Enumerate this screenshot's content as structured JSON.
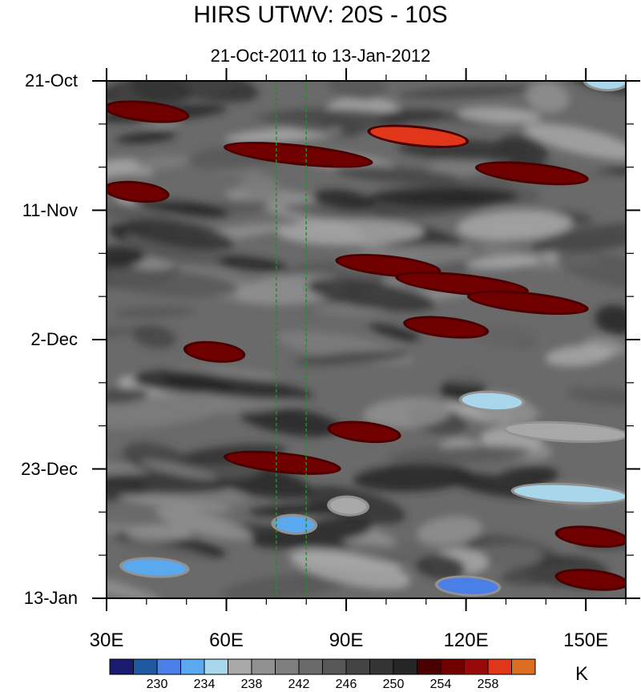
{
  "chart_data": {
    "type": "heatmap",
    "title": "HIRS UTWV: 20S - 10S",
    "subtitle": "21-Oct-2011 to 13-Jan-2012",
    "x_ticks": [
      {
        "value": 30,
        "label": "30E"
      },
      {
        "value": 60,
        "label": "60E"
      },
      {
        "value": 90,
        "label": "90E"
      },
      {
        "value": 120,
        "label": "120E"
      },
      {
        "value": 150,
        "label": "150E"
      }
    ],
    "y_ticks": [
      {
        "value": "2011-10-21",
        "label": "21-Oct"
      },
      {
        "value": "2011-11-11",
        "label": "11-Nov"
      },
      {
        "value": "2011-12-02",
        "label": "2-Dec"
      },
      {
        "value": "2011-12-23",
        "label": "23-Dec"
      },
      {
        "value": "2012-01-13",
        "label": "13-Jan"
      }
    ],
    "xlim": [
      30,
      160
    ],
    "ylim": [
      "2011-10-21",
      "2012-01-13"
    ],
    "reference_lines_x": [
      72.5,
      80
    ],
    "reference_line_color": "#2a8a2a",
    "colorbar": {
      "units": "K",
      "levels": [
        228,
        230,
        232,
        234,
        236,
        238,
        240,
        242,
        244,
        246,
        248,
        250,
        252,
        254,
        256,
        258
      ],
      "labeled_levels": [
        {
          "value": 230,
          "label": "230"
        },
        {
          "value": 234,
          "label": "234"
        },
        {
          "value": 238,
          "label": "238"
        },
        {
          "value": 242,
          "label": "242"
        },
        {
          "value": 246,
          "label": "246"
        },
        {
          "value": 250,
          "label": "250"
        },
        {
          "value": 254,
          "label": "254"
        },
        {
          "value": 258,
          "label": "258"
        }
      ],
      "colors": [
        "#1a1a6e",
        "#1f5aa0",
        "#4a7fe8",
        "#5aa8ee",
        "#a8d6ea",
        "#a8a8a8",
        "#919191",
        "#7e7e7e",
        "#6a6a6a",
        "#575757",
        "#444444",
        "#333333",
        "#262626",
        "#4a0000",
        "#700000",
        "#960a0a",
        "#e0361a",
        "#dc6e24"
      ]
    },
    "features": [
      {
        "date": "2011-10-26",
        "lon_min": 30,
        "lon_max": 50,
        "value": 254
      },
      {
        "date": "2011-10-30",
        "lon_min": 96,
        "lon_max": 120,
        "value": 258
      },
      {
        "date": "2011-11-02",
        "lon_min": 60,
        "lon_max": 96,
        "value": 254
      },
      {
        "date": "2011-11-05",
        "lon_min": 123,
        "lon_max": 150,
        "value": 254
      },
      {
        "date": "2011-11-08",
        "lon_min": 30,
        "lon_max": 45,
        "value": 254
      },
      {
        "date": "2011-11-20",
        "lon_min": 88,
        "lon_max": 113,
        "value": 254
      },
      {
        "date": "2011-11-23",
        "lon_min": 103,
        "lon_max": 135,
        "value": 254
      },
      {
        "date": "2011-11-26",
        "lon_min": 121,
        "lon_max": 150,
        "value": 254
      },
      {
        "date": "2011-11-30",
        "lon_min": 105,
        "lon_max": 125,
        "value": 254
      },
      {
        "date": "2011-12-04",
        "lon_min": 50,
        "lon_max": 64,
        "value": 254
      },
      {
        "date": "2011-12-17",
        "lon_min": 86,
        "lon_max": 103,
        "value": 254
      },
      {
        "date": "2011-12-22",
        "lon_min": 60,
        "lon_max": 88,
        "value": 254
      },
      {
        "date": "2011-12-12",
        "lon_min": 119,
        "lon_max": 134,
        "value": 234
      },
      {
        "date": "2011-12-17",
        "lon_min": 130,
        "lon_max": 160,
        "value": 236
      },
      {
        "date": "2011-12-27",
        "lon_min": 132,
        "lon_max": 160,
        "value": 234
      },
      {
        "date": "2011-12-29",
        "lon_min": 86,
        "lon_max": 95,
        "value": 236
      },
      {
        "date": "2012-01-01",
        "lon_min": 72,
        "lon_max": 82,
        "value": 232
      },
      {
        "date": "2012-01-08",
        "lon_min": 34,
        "lon_max": 50,
        "value": 232
      },
      {
        "date": "2012-01-11",
        "lon_min": 113,
        "lon_max": 128,
        "value": 230
      },
      {
        "date": "2012-01-03",
        "lon_min": 143,
        "lon_max": 160,
        "value": 254
      },
      {
        "date": "2012-01-10",
        "lon_min": 143,
        "lon_max": 160,
        "value": 254
      },
      {
        "date": "2011-10-21",
        "lon_min": 150,
        "lon_max": 160,
        "value": 234
      }
    ]
  }
}
